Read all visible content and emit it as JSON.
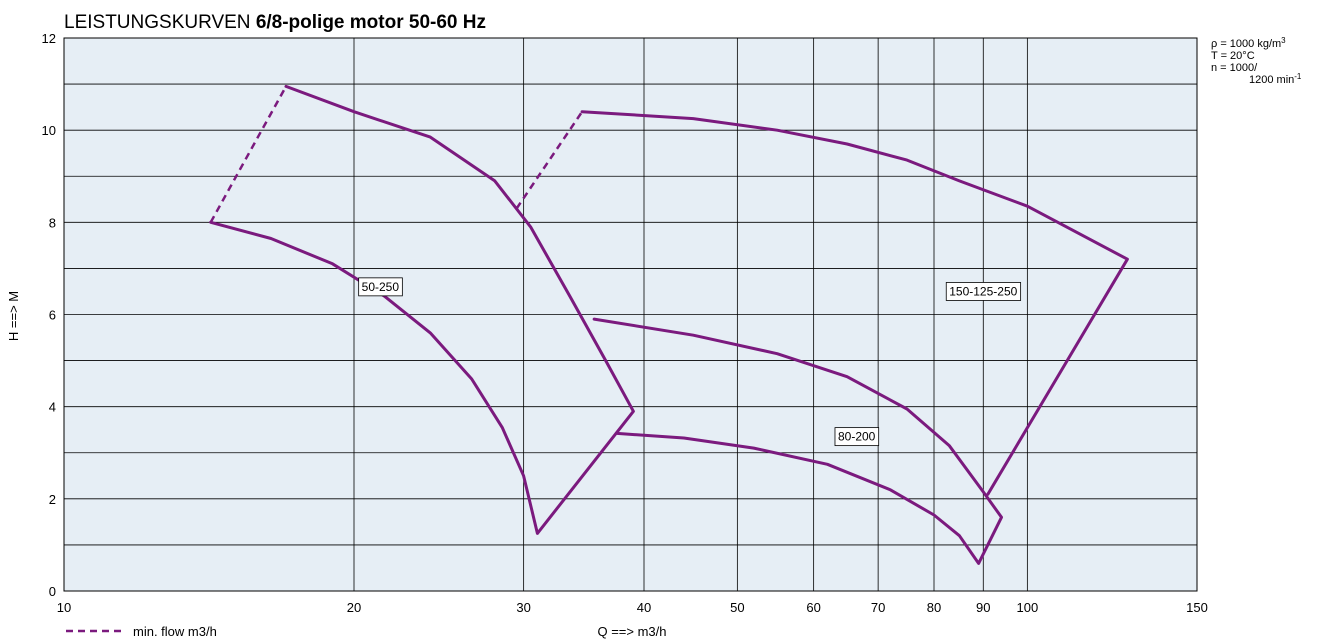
{
  "chart_data": {
    "type": "line",
    "title": "LEISTUNGSKURVEN ",
    "title_bold": "6/8-polige motor 50-60 Hz",
    "xlabel": "Q ==> m3/h",
    "ylabel": "H ==> M",
    "x_scale": "log",
    "xlim": [
      10,
      150
    ],
    "ylim": [
      0,
      12
    ],
    "x_ticks": [
      10,
      20,
      30,
      40,
      50,
      60,
      70,
      80,
      90,
      100,
      150
    ],
    "y_ticks": [
      0,
      2,
      4,
      6,
      8,
      10,
      12
    ],
    "y_minor_grid": [
      1,
      3,
      5,
      7,
      9,
      11
    ],
    "grid": true,
    "plot_background": "#e6eef5",
    "line_color": "#7b1a7e",
    "legend": {
      "label": "min. flow m3/h",
      "style": "dashed",
      "placement": "bottom-left"
    },
    "conditions": {
      "rho": "ρ  =  1000 kg/m",
      "rho_sup": "3",
      "temp": "T  =  20°C",
      "speed": "n  =  1000/",
      "speed2": "1200 min",
      "speed2_sup": "-1"
    },
    "series": [
      {
        "name": "50-250",
        "label_at": [
          21.3,
          6.6
        ],
        "outline": [
          [
            14.2,
            8.0
          ],
          [
            16.4,
            7.65
          ],
          [
            19.0,
            7.1
          ],
          [
            21.5,
            6.4
          ],
          [
            24.0,
            5.6
          ],
          [
            26.5,
            4.6
          ],
          [
            28.5,
            3.55
          ],
          [
            30.0,
            2.5
          ],
          [
            31.0,
            1.25
          ],
          [
            39.0,
            3.9
          ],
          [
            36.5,
            5.0
          ],
          [
            33.5,
            6.4
          ],
          [
            30.5,
            7.9
          ],
          [
            28.0,
            8.9
          ],
          [
            24.0,
            9.85
          ],
          [
            20.0,
            10.4
          ],
          [
            17.0,
            10.95
          ]
        ],
        "min_flow": [
          [
            14.2,
            8.0
          ],
          [
            17.0,
            10.95
          ]
        ]
      },
      {
        "name": "150-125-250",
        "label_at": [
          90.0,
          6.5
        ],
        "outline": [
          [
            34.5,
            10.4
          ],
          [
            45.0,
            10.25
          ],
          [
            55.0,
            10.0
          ],
          [
            65.0,
            9.7
          ],
          [
            75.0,
            9.35
          ],
          [
            85.0,
            8.9
          ],
          [
            100.0,
            8.35
          ],
          [
            127.0,
            7.2
          ],
          [
            91.0,
            2.1
          ]
        ],
        "min_flow": [
          [
            29.5,
            8.3
          ],
          [
            34.5,
            10.4
          ]
        ]
      },
      {
        "name": "80-200",
        "label_at": [
          66.5,
          3.35
        ],
        "outline": [
          [
            35.5,
            5.9
          ],
          [
            45.0,
            5.55
          ],
          [
            55.0,
            5.15
          ],
          [
            65.0,
            4.65
          ],
          [
            75.0,
            3.95
          ],
          [
            83.0,
            3.15
          ],
          [
            90.0,
            2.15
          ],
          [
            94.0,
            1.6
          ],
          [
            89.0,
            0.6
          ],
          [
            85.0,
            1.2
          ],
          [
            80.0,
            1.65
          ],
          [
            72.0,
            2.2
          ],
          [
            62.0,
            2.75
          ],
          [
            52.0,
            3.1
          ],
          [
            44.0,
            3.32
          ],
          [
            37.5,
            3.42
          ]
        ]
      }
    ]
  }
}
